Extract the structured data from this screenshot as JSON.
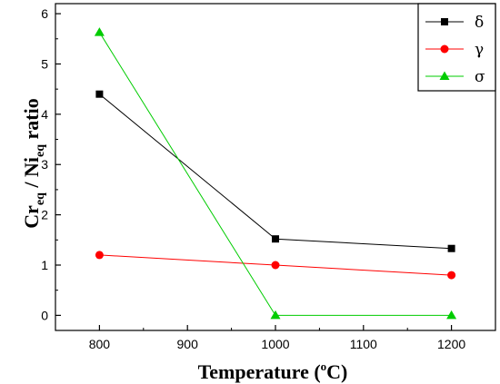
{
  "chart_data": {
    "type": "line",
    "x": [
      800,
      1000,
      1200
    ],
    "series": [
      {
        "name": "δ",
        "values": [
          4.4,
          1.52,
          1.33
        ],
        "color": "#000000",
        "marker": "square"
      },
      {
        "name": "γ",
        "values": [
          1.2,
          1.0,
          0.8
        ],
        "color": "#ff0000",
        "marker": "circle"
      },
      {
        "name": "σ",
        "values": [
          5.63,
          0.0,
          0.0
        ],
        "color": "#00cc00",
        "marker": "triangle"
      }
    ],
    "xlabel": {
      "main": "Temperature (",
      "sup": "o",
      "tail": "C)"
    },
    "ylabel": {
      "a": "Cr",
      "a_sub": "eq",
      "b": " / Ni",
      "b_sub": "eq",
      "c": " ratio"
    },
    "xlim": [
      750,
      1250
    ],
    "ylim": [
      -0.3,
      6.2
    ],
    "xticks": [
      800,
      900,
      1000,
      1100,
      1200
    ],
    "xtick_labels": [
      "800",
      "900",
      "1000",
      "1100",
      "1200"
    ],
    "yticks": [
      0,
      1,
      2,
      3,
      4,
      5,
      6
    ],
    "ytick_labels": [
      "0",
      "1",
      "2",
      "3",
      "4",
      "5",
      "6"
    ],
    "legend_position": "top-right",
    "grid": false
  }
}
